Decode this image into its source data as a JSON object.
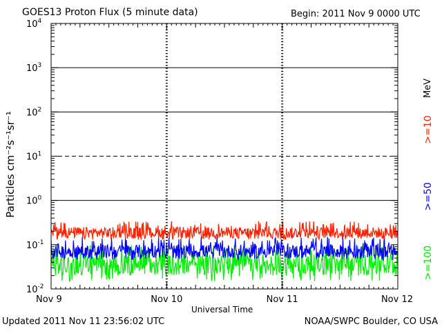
{
  "header": {
    "title": "GOES13 Proton Flux (5 minute data)",
    "begin": "Begin: 2011 Nov 9 0000 UTC"
  },
  "footer": {
    "updated": "Updated 2011 Nov 11 23:56:02 UTC",
    "credit": "NOAA/SWPC Boulder, CO USA"
  },
  "chart_data": {
    "type": "line",
    "title": "GOES13 Proton Flux (5 minute data)",
    "xlabel": "Universal Time",
    "ylabel": "Particles cm⁻²s⁻¹sr⁻¹",
    "yscale": "log",
    "ylim": [
      0.01,
      10000
    ],
    "y_ticks": [
      {
        "value": 0.01,
        "base": "10",
        "exp": "-2"
      },
      {
        "value": 0.1,
        "base": "10",
        "exp": "-1"
      },
      {
        "value": 1,
        "base": "10",
        "exp": "0"
      },
      {
        "value": 10,
        "base": "10",
        "exp": "1"
      },
      {
        "value": 100,
        "base": "10",
        "exp": "2"
      },
      {
        "value": 1000,
        "base": "10",
        "exp": "3"
      },
      {
        "value": 10000,
        "base": "10",
        "exp": "4"
      }
    ],
    "x_ticks": [
      "Nov 9",
      "Nov 10",
      "Nov 11",
      "Nov 12"
    ],
    "xlim": [
      "2011-11-09",
      "2011-11-12"
    ],
    "threshold_lines": [
      1,
      10,
      100,
      1000
    ],
    "legend_unit": "MeV",
    "legend_placement": "right",
    "series": [
      {
        "name": ">=10",
        "color": "#ff2200",
        "range": [
          0.13,
          0.35
        ],
        "typical": [
          0.14,
          0.25
        ]
      },
      {
        "name": ">=50",
        "color": "#0000ff",
        "range": [
          0.045,
          0.15
        ],
        "typical": [
          0.05,
          0.1
        ]
      },
      {
        "name": ">=100",
        "color": "#00ee00",
        "range": [
          0.015,
          0.1
        ],
        "typical": [
          0.02,
          0.06
        ]
      }
    ]
  }
}
